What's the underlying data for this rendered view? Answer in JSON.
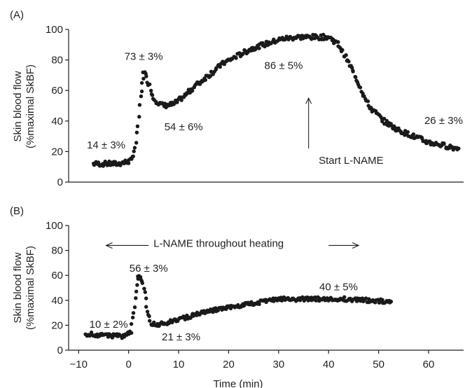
{
  "chart_data": [
    {
      "type": "scatter",
      "panel_label": "(A)",
      "ylabel_line1": "Skin blood flow",
      "ylabel_line2": "(%maximal SkBF)",
      "ylim": [
        0,
        100
      ],
      "yticks": [
        "0",
        "20",
        "40",
        "60",
        "80",
        "100"
      ],
      "xlim": [
        -12,
        67
      ],
      "series": [
        {
          "values_x": [
            -7,
            -2,
            0.5,
            1.5,
            2.5,
            3,
            4,
            5,
            6,
            7,
            9,
            11,
            13,
            16,
            19,
            22,
            25,
            28,
            31,
            34,
            37,
            40,
            42,
            44,
            46,
            48,
            51,
            54,
            57,
            60,
            63,
            66
          ],
          "values_y": [
            12,
            12,
            14,
            25,
            55,
            73,
            65,
            55,
            52,
            50,
            51,
            56,
            62,
            70,
            78,
            83,
            88,
            91,
            94,
            95,
            95,
            95,
            90,
            78,
            65,
            50,
            40,
            34,
            30,
            26,
            24,
            22
          ]
        }
      ],
      "annotations": [
        {
          "text": "14 ± 3%",
          "x": -4.5,
          "y": 22
        },
        {
          "text": "73 ± 3%",
          "x": 3,
          "y": 80
        },
        {
          "text": "54 ± 6%",
          "x": 11,
          "y": 34
        },
        {
          "text": "86 ± 5%",
          "x": 31,
          "y": 74
        },
        {
          "text": "26 ± 3%",
          "x": 63,
          "y": 38
        },
        {
          "text": "Start L-NAME",
          "x": 44.5,
          "y": 12
        }
      ],
      "arrow": {
        "x": 36,
        "y_from": 22,
        "y_to": 55,
        "direction": "up"
      }
    },
    {
      "type": "scatter",
      "panel_label": "(B)",
      "ylabel_line1": "Skin blood flow",
      "ylabel_line2": "(%maximal SkBF)",
      "xlabel": "Time (min)",
      "ylim": [
        0,
        100
      ],
      "yticks": [
        "0",
        "20",
        "40",
        "60",
        "80",
        "100"
      ],
      "xlim": [
        -12,
        67
      ],
      "xticks": [
        "−10",
        "0",
        "10",
        "20",
        "30",
        "40",
        "50",
        "60"
      ],
      "xtick_values": [
        -10,
        0,
        10,
        20,
        30,
        40,
        50,
        60
      ],
      "series": [
        {
          "values_x": [
            -8.5,
            -5,
            -1,
            0.5,
            1.2,
            1.8,
            2.3,
            3,
            3.8,
            4.5,
            5.5,
            7,
            9,
            12,
            15,
            18,
            21,
            24,
            27,
            30,
            33,
            36,
            40,
            44,
            48,
            52.5
          ],
          "values_y": [
            13,
            12,
            11,
            15,
            35,
            58,
            60,
            50,
            30,
            22,
            21,
            21,
            24,
            27,
            30,
            33,
            35,
            37,
            39,
            41,
            41,
            41,
            41,
            41,
            40,
            39
          ]
        }
      ],
      "annotations": [
        {
          "text": "L-NAME throughout heating",
          "x": 18,
          "y": 83
        },
        {
          "text": "56 ± 3%",
          "x": 4,
          "y": 63
        },
        {
          "text": "10 ± 2%",
          "x": -4,
          "y": 18
        },
        {
          "text": "21 ± 3%",
          "x": 10.5,
          "y": 8
        },
        {
          "text": "40 ± 5%",
          "x": 42,
          "y": 48
        }
      ],
      "double_arrow": {
        "left_from": 4,
        "left_to": -4.5,
        "right_from": 40,
        "right_to": 46,
        "y": 84
      }
    }
  ]
}
